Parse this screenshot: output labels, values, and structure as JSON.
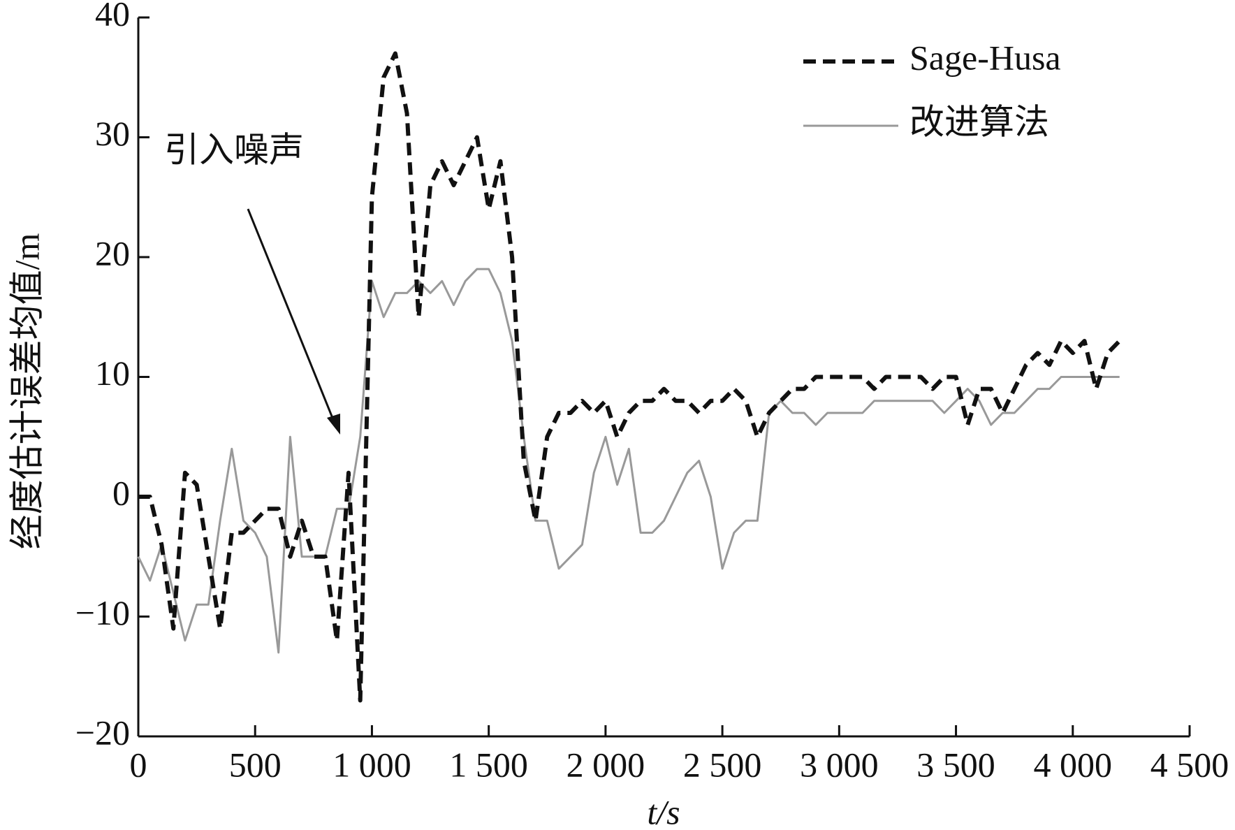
{
  "chart_data": {
    "type": "line",
    "y_label": "经度估计误差均值/m",
    "x_label": "t/s",
    "annotation": "引入噪声",
    "legend": "top-right",
    "xlim": [
      0,
      4500
    ],
    "ylim": [
      -20,
      40
    ],
    "xticks": [
      0,
      500,
      {
        "value": 1000,
        "label": "1 000"
      },
      {
        "value": 1500,
        "label": "1 500"
      },
      {
        "value": 2000,
        "label": "2 000"
      },
      {
        "value": 2500,
        "label": "2 500"
      },
      {
        "value": 3000,
        "label": "3 000"
      },
      {
        "value": 3500,
        "label": "3 500"
      },
      {
        "value": 4000,
        "label": "4 000"
      },
      {
        "value": 4500,
        "label": "4 500"
      }
    ],
    "yticks": [
      {
        "value": -20,
        "label": "−20"
      },
      {
        "value": -10,
        "label": "−10"
      },
      0,
      10,
      20,
      30,
      40
    ],
    "x": [
      0,
      50,
      100,
      150,
      200,
      250,
      300,
      350,
      400,
      450,
      500,
      550,
      600,
      650,
      700,
      750,
      800,
      850,
      900,
      950,
      1000,
      1050,
      1100,
      1150,
      1200,
      1250,
      1300,
      1350,
      1400,
      1450,
      1500,
      1550,
      1600,
      1650,
      1700,
      1750,
      1800,
      1850,
      1900,
      1950,
      2000,
      2050,
      2100,
      2150,
      2200,
      2250,
      2300,
      2350,
      2400,
      2450,
      2500,
      2550,
      2600,
      2650,
      2700,
      2750,
      2800,
      2850,
      2900,
      2950,
      3000,
      3050,
      3100,
      3150,
      3200,
      3250,
      3300,
      3350,
      3400,
      3450,
      3500,
      3550,
      3600,
      3650,
      3700,
      3750,
      3800,
      3850,
      3900,
      3950,
      4000,
      4050,
      4100,
      4150,
      4200
    ],
    "series": [
      {
        "name": "Sage-Husa",
        "color": "#111111",
        "dash": true,
        "values": [
          0,
          0,
          -4,
          -11,
          2,
          1,
          -5,
          -11,
          -3,
          -3,
          -2,
          -1,
          -1,
          -5,
          -2,
          -5,
          -5,
          -12,
          2,
          -17,
          25,
          35,
          37,
          32,
          15,
          26,
          28,
          26,
          28,
          30,
          24,
          28,
          20,
          3,
          -2,
          5,
          7,
          7,
          8,
          7,
          8,
          5,
          7,
          8,
          8,
          9,
          8,
          8,
          7,
          8,
          8,
          9,
          8,
          5,
          7,
          8,
          9,
          9,
          10,
          10,
          10,
          10,
          10,
          9,
          10,
          10,
          10,
          10,
          9,
          10,
          10,
          6,
          9,
          9,
          7,
          9,
          11,
          12,
          11,
          13,
          12,
          13,
          9,
          12,
          13
        ]
      },
      {
        "name": "改进算法",
        "color": "#999999",
        "dash": false,
        "values": [
          -5,
          -7,
          -4,
          -8,
          -12,
          -9,
          -9,
          -2,
          4,
          -2,
          -3,
          -5,
          -13,
          5,
          -5,
          -5,
          -5,
          -1,
          -1,
          5,
          18,
          15,
          17,
          17,
          18,
          17,
          18,
          16,
          18,
          19,
          19,
          17,
          13,
          5,
          -2,
          -2,
          -6,
          -5,
          -4,
          2,
          5,
          1,
          4,
          -3,
          -3,
          -2,
          0,
          2,
          3,
          0,
          -6,
          -3,
          -2,
          -2,
          7,
          8,
          7,
          7,
          6,
          7,
          7,
          7,
          7,
          8,
          8,
          8,
          8,
          8,
          8,
          7,
          8,
          9,
          8,
          6,
          7,
          7,
          8,
          9,
          9,
          10,
          10,
          10,
          10,
          10,
          10
        ]
      }
    ]
  }
}
